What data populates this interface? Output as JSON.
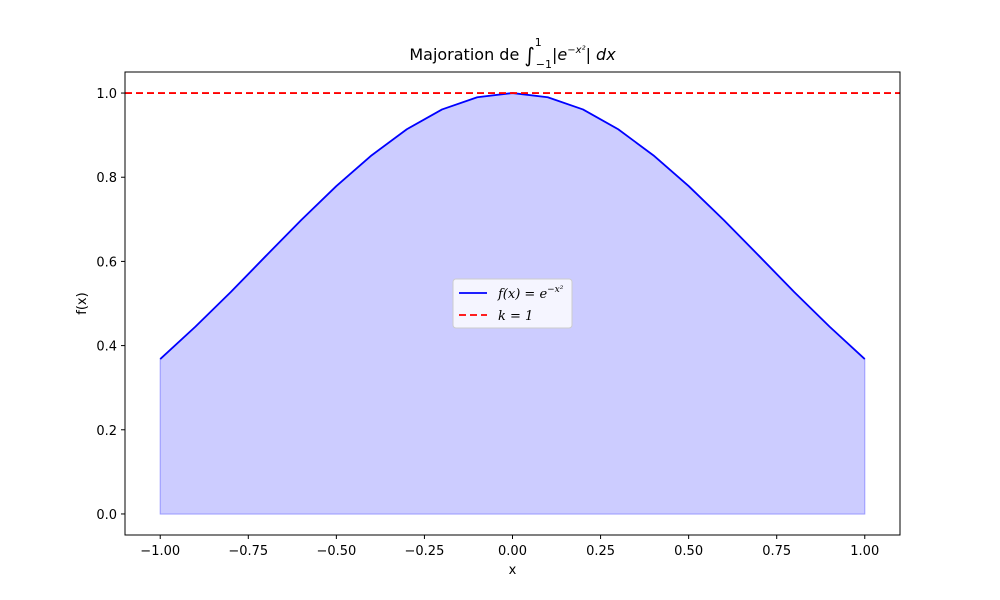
{
  "chart_data": {
    "type": "area",
    "title": {
      "prefix": "Majoration de ",
      "integral_sign": "∫",
      "upper_limit": "1",
      "lower_limit": "−1",
      "integrand_base": "|e",
      "integrand_exponent": "−x²",
      "integrand_tail": "| dx"
    },
    "xlabel": "x",
    "ylabel": "f(x)",
    "xlim": [
      -1.1,
      1.1
    ],
    "ylim": [
      -0.05,
      1.05
    ],
    "xticks": [
      -1.0,
      -0.75,
      -0.5,
      -0.25,
      0.0,
      0.25,
      0.5,
      0.75,
      1.0
    ],
    "xtick_labels": [
      "−1.00",
      "−0.75",
      "−0.50",
      "−0.25",
      "0.00",
      "0.25",
      "0.50",
      "0.75",
      "1.00"
    ],
    "yticks": [
      0.0,
      0.2,
      0.4,
      0.6,
      0.8,
      1.0
    ],
    "ytick_labels": [
      "0.0",
      "0.2",
      "0.4",
      "0.6",
      "0.8",
      "1.0"
    ],
    "grid": false,
    "legend_position": "center",
    "series": [
      {
        "name": "f(x) = e^{−x²}",
        "legend": {
          "base": "f(x) = e",
          "exponent": "−x²"
        },
        "type": "line",
        "color": "#0000ff",
        "fill": "#ccccff",
        "x": [
          -1.0,
          -0.9,
          -0.8,
          -0.7,
          -0.6,
          -0.5,
          -0.4,
          -0.3,
          -0.2,
          -0.1,
          0.0,
          0.1,
          0.2,
          0.3,
          0.4,
          0.5,
          0.6,
          0.7,
          0.8,
          0.9,
          1.0
        ],
        "y": [
          0.368,
          0.445,
          0.527,
          0.613,
          0.698,
          0.779,
          0.852,
          0.914,
          0.961,
          0.99,
          1.0,
          0.99,
          0.961,
          0.914,
          0.852,
          0.779,
          0.698,
          0.613,
          0.527,
          0.445,
          0.368
        ]
      },
      {
        "name": "k = 1",
        "legend": {
          "base": "k = 1",
          "exponent": ""
        },
        "type": "hline",
        "color": "#ff0000",
        "dashed": true,
        "y": 1.0
      }
    ]
  }
}
